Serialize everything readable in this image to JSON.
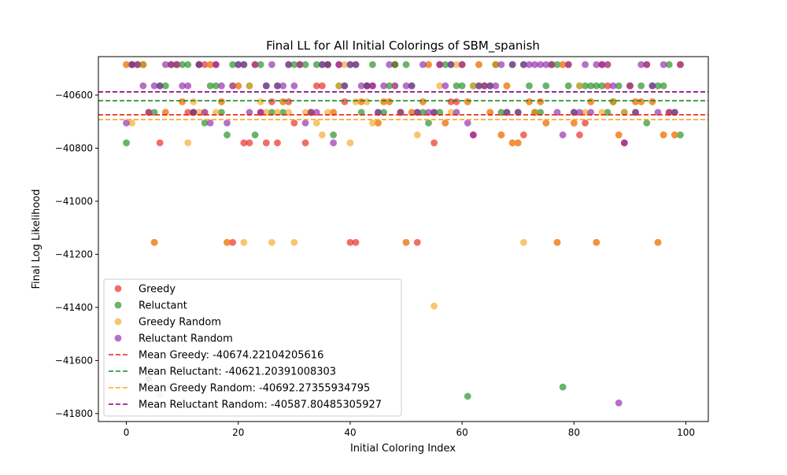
{
  "chart_data": {
    "type": "scatter",
    "title": "Final LL for All Initial Colorings of SBM_spanish",
    "xlabel": "Initial Coloring Index",
    "ylabel": "Final Log Likelihood",
    "xlim": [
      -5,
      104
    ],
    "ylim": [
      -41830,
      -40455
    ],
    "x_ticks": [
      0,
      20,
      40,
      60,
      80,
      100
    ],
    "y_ticks": [
      -40600,
      -40800,
      -41000,
      -41200,
      -41400,
      -41600,
      -41800
    ],
    "x_tick_labels": [
      "0",
      "20",
      "40",
      "60",
      "80",
      "100"
    ],
    "y_tick_labels": [
      "−40600",
      "−40800",
      "−41000",
      "−41200",
      "−41400",
      "−41600",
      "−41800"
    ],
    "grid": false,
    "legend_position": "lower-left",
    "series": [
      {
        "name": "Greedy",
        "color": "#e8211a",
        "x": [
          0,
          1,
          2,
          3,
          4,
          5,
          6,
          7,
          8,
          9,
          10,
          11,
          12,
          13,
          14,
          15,
          16,
          17,
          18,
          19,
          20,
          21,
          22,
          23,
          24,
          25,
          26,
          27,
          28,
          29,
          30,
          31,
          32,
          33,
          34,
          35,
          36,
          37,
          38,
          39,
          40,
          41,
          42,
          43,
          44,
          45,
          46,
          47,
          48,
          49,
          50,
          51,
          52,
          53,
          54,
          55,
          56,
          57,
          58,
          59,
          60,
          61,
          62,
          63,
          64,
          65,
          66,
          67,
          68,
          69,
          70,
          71,
          72,
          73,
          74,
          75,
          76,
          77,
          78,
          79,
          80,
          81,
          82,
          83,
          84,
          85,
          86,
          87,
          88,
          89,
          90,
          91,
          92,
          93,
          94,
          95,
          96,
          97,
          98,
          99
        ],
        "y": [
          -40485,
          -40485,
          -40485,
          -40485,
          -40665,
          -41155,
          -40780,
          -40665,
          -40485,
          -40485,
          -40625,
          -40665,
          -40665,
          -40485,
          -40485,
          -40485,
          -40485,
          -40625,
          -41155,
          -41155,
          -40565,
          -40780,
          -40780,
          -40485,
          -40665,
          -40780,
          -40625,
          -40780,
          -40625,
          -40625,
          -40705,
          -40485,
          -40780,
          -40665,
          -40565,
          -40565,
          -40485,
          -40665,
          -40485,
          -40625,
          -41155,
          -41155,
          -40625,
          -40565,
          -40565,
          -40705,
          -40625,
          -40625,
          -40485,
          -40665,
          -41155,
          -40665,
          -41155,
          -40625,
          -40485,
          -40780,
          -40485,
          -40705,
          -40625,
          -40625,
          -40485,
          -40625,
          -40750,
          -40485,
          -40565,
          -40665,
          -40485,
          -40750,
          -40565,
          -40780,
          -40780,
          -40750,
          -40625,
          -40665,
          -40625,
          -40705,
          -40485,
          -41155,
          -40485,
          -40485,
          -40705,
          -40750,
          -40705,
          -40625,
          -41155,
          -40485,
          -40565,
          -40625,
          -40750,
          -40780,
          -40565,
          -40625,
          -40625,
          -40485,
          -40625,
          -41155,
          -40750,
          -40665,
          -40750,
          -40485
        ]
      },
      {
        "name": "Reluctant",
        "color": "#1a8c1a",
        "x": [
          0,
          1,
          2,
          3,
          4,
          5,
          6,
          7,
          8,
          9,
          10,
          11,
          12,
          13,
          14,
          15,
          16,
          17,
          18,
          19,
          20,
          21,
          22,
          23,
          24,
          25,
          26,
          27,
          28,
          29,
          30,
          31,
          32,
          33,
          34,
          35,
          36,
          37,
          38,
          39,
          40,
          41,
          42,
          43,
          44,
          45,
          46,
          47,
          48,
          49,
          50,
          51,
          52,
          53,
          54,
          55,
          56,
          57,
          58,
          59,
          60,
          61,
          62,
          63,
          64,
          65,
          66,
          67,
          68,
          69,
          70,
          71,
          72,
          73,
          74,
          75,
          76,
          77,
          78,
          79,
          80,
          81,
          82,
          83,
          84,
          85,
          86,
          87,
          88,
          89,
          90,
          91,
          92,
          93,
          94,
          95,
          96,
          97,
          98,
          99
        ],
        "y": [
          -40780,
          -40485,
          -40485,
          -40485,
          -41670,
          -40665,
          -40565,
          -40565,
          -40485,
          -40485,
          -40485,
          -40485,
          -40665,
          -40485,
          -40705,
          -40565,
          -40565,
          -40665,
          -40750,
          -40485,
          -40485,
          -40485,
          -40565,
          -40750,
          -40485,
          -40565,
          -40665,
          -40565,
          -40665,
          -40485,
          -40485,
          -40485,
          -40485,
          -40665,
          -40485,
          -40485,
          -40485,
          -40750,
          -40565,
          -40565,
          -40485,
          -40485,
          -40665,
          -40565,
          -40485,
          -40665,
          -40665,
          -40565,
          -40485,
          -40665,
          -40485,
          -40565,
          -40665,
          -40665,
          -40705,
          -40665,
          -40665,
          -40485,
          -40485,
          -40565,
          -40565,
          -41735,
          -40565,
          -40565,
          -40565,
          -40565,
          -40485,
          -40665,
          -40665,
          -40485,
          -40665,
          -40485,
          -40565,
          -40665,
          -40665,
          -40565,
          -40485,
          -40485,
          -41700,
          -40565,
          -40665,
          -40565,
          -40565,
          -40565,
          -40565,
          -40565,
          -40665,
          -40625,
          -40565,
          -40665,
          -40565,
          -40665,
          -40565,
          -40705,
          -40565,
          -40565,
          -40565,
          -40485,
          -40665,
          -40750
        ]
      },
      {
        "name": "Greedy Random",
        "color": "#f5a623",
        "x": [
          0,
          1,
          2,
          3,
          4,
          5,
          6,
          7,
          8,
          9,
          10,
          11,
          12,
          13,
          14,
          15,
          16,
          17,
          18,
          19,
          20,
          21,
          22,
          23,
          24,
          25,
          26,
          27,
          28,
          29,
          30,
          31,
          32,
          33,
          34,
          35,
          36,
          37,
          38,
          39,
          40,
          41,
          42,
          43,
          44,
          45,
          46,
          47,
          48,
          49,
          50,
          51,
          52,
          53,
          54,
          55,
          56,
          57,
          58,
          59,
          60,
          61,
          62,
          63,
          64,
          65,
          66,
          67,
          68,
          69,
          70,
          71,
          72,
          73,
          74,
          75,
          76,
          77,
          78,
          79,
          80,
          81,
          82,
          83,
          84,
          85,
          86,
          87,
          88,
          89,
          90,
          91,
          92,
          93,
          94,
          95,
          96,
          97,
          98,
          99
        ],
        "y": [
          -40485,
          -40705,
          -40485,
          -40485,
          -40665,
          -41155,
          -41730,
          -40665,
          -40485,
          -40485,
          -40625,
          -40780,
          -40625,
          -40665,
          -40665,
          -40485,
          -40665,
          -40625,
          -41155,
          -40565,
          -40565,
          -41155,
          -40565,
          -40485,
          -40625,
          -40665,
          -41155,
          -40665,
          -40625,
          -40665,
          -41155,
          -40485,
          -40665,
          -40665,
          -40705,
          -40750,
          -40665,
          -40665,
          -40565,
          -40485,
          -40780,
          -40625,
          -40625,
          -40625,
          -40705,
          -40705,
          -40625,
          -40625,
          -40565,
          -40665,
          -41155,
          -40665,
          -40750,
          -40625,
          -40485,
          -41395,
          -40565,
          -40705,
          -40665,
          -40485,
          -40485,
          -40625,
          -40565,
          -40485,
          -40565,
          -40665,
          -40485,
          -40750,
          -40565,
          -40780,
          -40780,
          -41155,
          -40625,
          -40665,
          -40625,
          -40705,
          -40485,
          -41155,
          -40485,
          -40485,
          -40705,
          -40565,
          -40665,
          -40625,
          -41155,
          -40665,
          -40485,
          -40625,
          -40750,
          -40665,
          -40565,
          -40625,
          -40625,
          -40485,
          -40625,
          -41155,
          -40750,
          -40665,
          -40750,
          -40485
        ]
      },
      {
        "name": "Reluctant Random",
        "color": "#8e24aa",
        "x": [
          0,
          1,
          2,
          3,
          4,
          5,
          6,
          7,
          8,
          9,
          10,
          11,
          12,
          13,
          14,
          15,
          16,
          17,
          18,
          19,
          20,
          21,
          22,
          23,
          24,
          25,
          26,
          27,
          28,
          29,
          30,
          31,
          32,
          33,
          34,
          35,
          36,
          37,
          38,
          39,
          40,
          41,
          42,
          43,
          44,
          45,
          46,
          47,
          48,
          49,
          50,
          51,
          52,
          53,
          54,
          55,
          56,
          57,
          58,
          59,
          60,
          61,
          62,
          63,
          64,
          65,
          66,
          67,
          68,
          69,
          70,
          71,
          72,
          73,
          74,
          75,
          76,
          77,
          78,
          79,
          80,
          81,
          82,
          83,
          84,
          85,
          86,
          87,
          88,
          89,
          90,
          91,
          92,
          93,
          94,
          95,
          96,
          97,
          98,
          99
        ],
        "y": [
          -40705,
          -40485,
          -40485,
          -40565,
          -40665,
          -40565,
          -40565,
          -40485,
          -40485,
          -40485,
          -40565,
          -40565,
          -40665,
          -40485,
          -40665,
          -40705,
          -40485,
          -40565,
          -40705,
          -40565,
          -40485,
          -40485,
          -40665,
          -40485,
          -40665,
          -40565,
          -40485,
          -40565,
          -40565,
          -40485,
          -40565,
          -40485,
          -40705,
          -40665,
          -40665,
          -40485,
          -40485,
          -40780,
          -40485,
          -40565,
          -40485,
          -40485,
          -40565,
          -40565,
          -40565,
          -40665,
          -40565,
          -40485,
          -40565,
          -40665,
          -40565,
          -40565,
          -40665,
          -40485,
          -40665,
          -40665,
          -40485,
          -40565,
          -40485,
          -40665,
          -40485,
          -40705,
          -40750,
          -40565,
          -40565,
          -40565,
          -40565,
          -40485,
          -40665,
          -40485,
          -40665,
          -40485,
          -40485,
          -40485,
          -40485,
          -40485,
          -40485,
          -40665,
          -40750,
          -40485,
          -40665,
          -40665,
          -40485,
          -40665,
          -40485,
          -40485,
          -40485,
          -40565,
          -41760,
          -40780,
          -40565,
          -40665,
          -40485,
          -40485,
          -40565,
          -40665,
          -40485,
          -40665,
          -40665,
          -40485
        ]
      }
    ],
    "mean_lines": [
      {
        "name": "Mean Greedy: -40674.22104205616",
        "value": -40674.22104205616,
        "color": "#e8211a"
      },
      {
        "name": "Mean Reluctant: -40621.20391008303",
        "value": -40621.20391008303,
        "color": "#1a8c1a"
      },
      {
        "name": "Mean Greedy Random: -40692.27355934795",
        "value": -40692.27355934795,
        "color": "#f5a623"
      },
      {
        "name": "Mean Reluctant Random: -40587.80485305927",
        "value": -40587.80485305927,
        "color": "#800080"
      }
    ]
  }
}
